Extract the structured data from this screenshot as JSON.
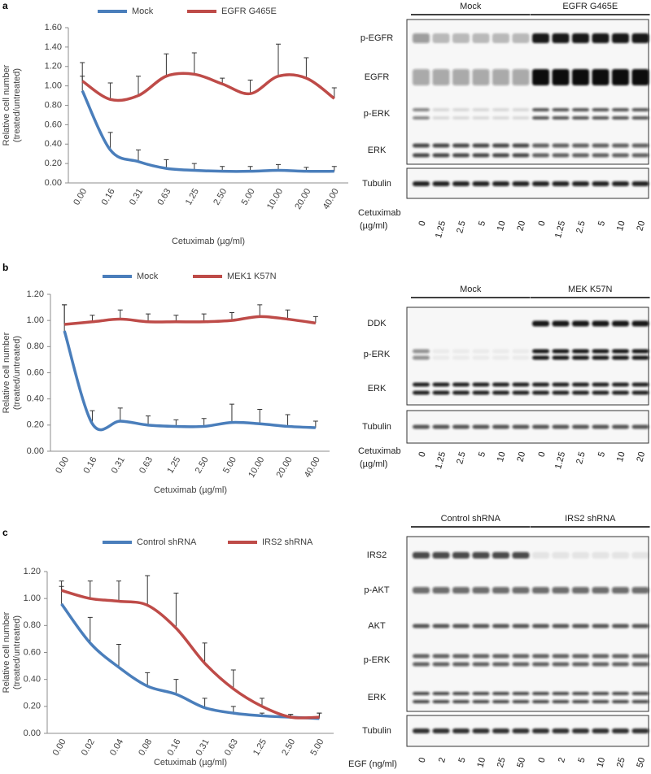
{
  "panel_labels": [
    "a",
    "b",
    "c"
  ],
  "chart_data": [
    {
      "type": "line",
      "x_label": "Cetuximab (µg/ml)",
      "y_label": [
        "Relative cell number",
        "(treated/untreated)"
      ],
      "categories": [
        "0.00",
        "0.16",
        "0.31",
        "0.63",
        "1.25",
        "2.50",
        "5.00",
        "10.00",
        "20.00",
        "40.00"
      ],
      "series": [
        {
          "name": "Mock",
          "color": "#4a7ebb",
          "values": [
            0.95,
            0.34,
            0.22,
            0.15,
            0.13,
            0.12,
            0.12,
            0.13,
            0.12,
            0.12
          ],
          "errors": [
            0.15,
            0.18,
            0.12,
            0.09,
            0.07,
            0.05,
            0.05,
            0.06,
            0.04,
            0.05
          ]
        },
        {
          "name": "EGFR G465E",
          "color": "#be4b48",
          "values": [
            1.05,
            0.86,
            0.9,
            1.1,
            1.12,
            1.02,
            0.92,
            1.1,
            1.08,
            0.87
          ],
          "errors": [
            0.19,
            0.17,
            0.2,
            0.23,
            0.22,
            0.06,
            0.14,
            0.33,
            0.21,
            0.11
          ]
        }
      ],
      "ylim": [
        0,
        1.6
      ],
      "yticks": [
        {
          "value": 0,
          "label": "0.00"
        },
        {
          "value": 0.2,
          "label": "0.20"
        },
        {
          "value": 0.4,
          "label": "0.40"
        },
        {
          "value": 0.6,
          "label": "0.60"
        },
        {
          "value": 0.8,
          "label": "0.80"
        },
        {
          "value": 1.0,
          "label": "1.00"
        },
        {
          "value": 1.2,
          "label": "1.20"
        },
        {
          "value": 1.4,
          "label": "1.40"
        },
        {
          "value": 1.6,
          "label": "1.60"
        }
      ],
      "legend": "top",
      "grid": false
    },
    {
      "type": "line",
      "x_label": "Cetuximab (µg/ml)",
      "y_label": [
        "Relative cell number",
        "(treated/untreated)"
      ],
      "categories": [
        "0.00",
        "0.16",
        "0.31",
        "0.63",
        "1.25",
        "2.50",
        "5.00",
        "10.00",
        "20.00",
        "40.00"
      ],
      "series": [
        {
          "name": "Mock",
          "color": "#4a7ebb",
          "values": [
            0.92,
            0.21,
            0.23,
            0.2,
            0.19,
            0.19,
            0.22,
            0.21,
            0.19,
            0.18
          ],
          "errors": [
            0.2,
            0.1,
            0.1,
            0.07,
            0.05,
            0.06,
            0.14,
            0.11,
            0.09,
            0.05
          ]
        },
        {
          "name": "MEK1 K57N",
          "color": "#be4b48",
          "values": [
            0.97,
            0.99,
            1.01,
            0.99,
            0.99,
            0.99,
            1.0,
            1.03,
            1.01,
            0.98
          ],
          "errors": [
            0.15,
            0.05,
            0.07,
            0.06,
            0.05,
            0.06,
            0.06,
            0.09,
            0.07,
            0.05
          ]
        }
      ],
      "ylim": [
        0,
        1.2
      ],
      "yticks": [
        {
          "value": 0,
          "label": "0.00"
        },
        {
          "value": 0.2,
          "label": "0.20"
        },
        {
          "value": 0.4,
          "label": "0.40"
        },
        {
          "value": 0.6,
          "label": "0.60"
        },
        {
          "value": 0.8,
          "label": "0.80"
        },
        {
          "value": 1.0,
          "label": "1.00"
        },
        {
          "value": 1.2,
          "label": "1.20"
        }
      ],
      "legend": "top",
      "grid": false
    },
    {
      "type": "line",
      "x_label": "Cetuximab (µg/ml)",
      "y_label": [
        "Relative cell number",
        "(treated/untreated)"
      ],
      "categories": [
        "0.00",
        "0.02",
        "0.04",
        "0.08",
        "0.16",
        "0.31",
        "0.63",
        "1.25",
        "2.50",
        "5.00"
      ],
      "series": [
        {
          "name": "Control shRNA",
          "color": "#4a7ebb",
          "values": [
            0.96,
            0.67,
            0.49,
            0.35,
            0.29,
            0.19,
            0.15,
            0.13,
            0.12,
            0.11
          ],
          "errors": [
            0.13,
            0.19,
            0.17,
            0.1,
            0.11,
            0.07,
            0.05,
            0.02,
            0.02,
            0.04
          ]
        },
        {
          "name": "IRS2 shRNA",
          "color": "#be4b48",
          "values": [
            1.06,
            1.0,
            0.98,
            0.95,
            0.78,
            0.52,
            0.33,
            0.2,
            0.12,
            0.12
          ],
          "errors": [
            0.07,
            0.13,
            0.15,
            0.22,
            0.26,
            0.15,
            0.14,
            0.06,
            0.02,
            0.03
          ]
        }
      ],
      "ylim": [
        0,
        1.2
      ],
      "yticks": [
        {
          "value": 0,
          "label": "0.00"
        },
        {
          "value": 0.2,
          "label": "0.20"
        },
        {
          "value": 0.4,
          "label": "0.40"
        },
        {
          "value": 0.6,
          "label": "0.60"
        },
        {
          "value": 0.8,
          "label": "0.80"
        },
        {
          "value": 1.0,
          "label": "1.00"
        },
        {
          "value": 1.2,
          "label": "1.20"
        }
      ],
      "legend": "top",
      "grid": false
    }
  ],
  "blots": [
    {
      "groups": [
        "Mock",
        "EGFR G465E"
      ],
      "rows": [
        "p-EGFR",
        "EGFR",
        "p-ERK",
        "ERK",
        "Tubulin"
      ],
      "treatment_label": [
        "Cetuximab",
        "(µg/ml)"
      ],
      "lanes": [
        "0",
        "1.25",
        "2.5",
        "5",
        "10",
        "20",
        "0",
        "1.25",
        "2.5",
        "5",
        "10",
        "20"
      ]
    },
    {
      "groups": [
        "Mock",
        "MEK K57N"
      ],
      "rows": [
        "DDK",
        "p-ERK",
        "ERK",
        "Tubulin"
      ],
      "treatment_label": [
        "Cetuximab",
        "(µg/ml)"
      ],
      "lanes": [
        "0",
        "1.25",
        "2.5",
        "5",
        "10",
        "20",
        "0",
        "1.25",
        "2.5",
        "5",
        "10",
        "20"
      ]
    },
    {
      "groups": [
        "Control shRNA",
        "IRS2 shRNA"
      ],
      "rows": [
        "IRS2",
        "p-AKT",
        "AKT",
        "p-ERK",
        "ERK",
        "Tubulin"
      ],
      "treatment_label": [
        "EGF (ng/ml)"
      ],
      "lanes": [
        "0",
        "2",
        "5",
        "10",
        "25",
        "50",
        "0",
        "2",
        "5",
        "10",
        "25",
        "50"
      ]
    }
  ]
}
